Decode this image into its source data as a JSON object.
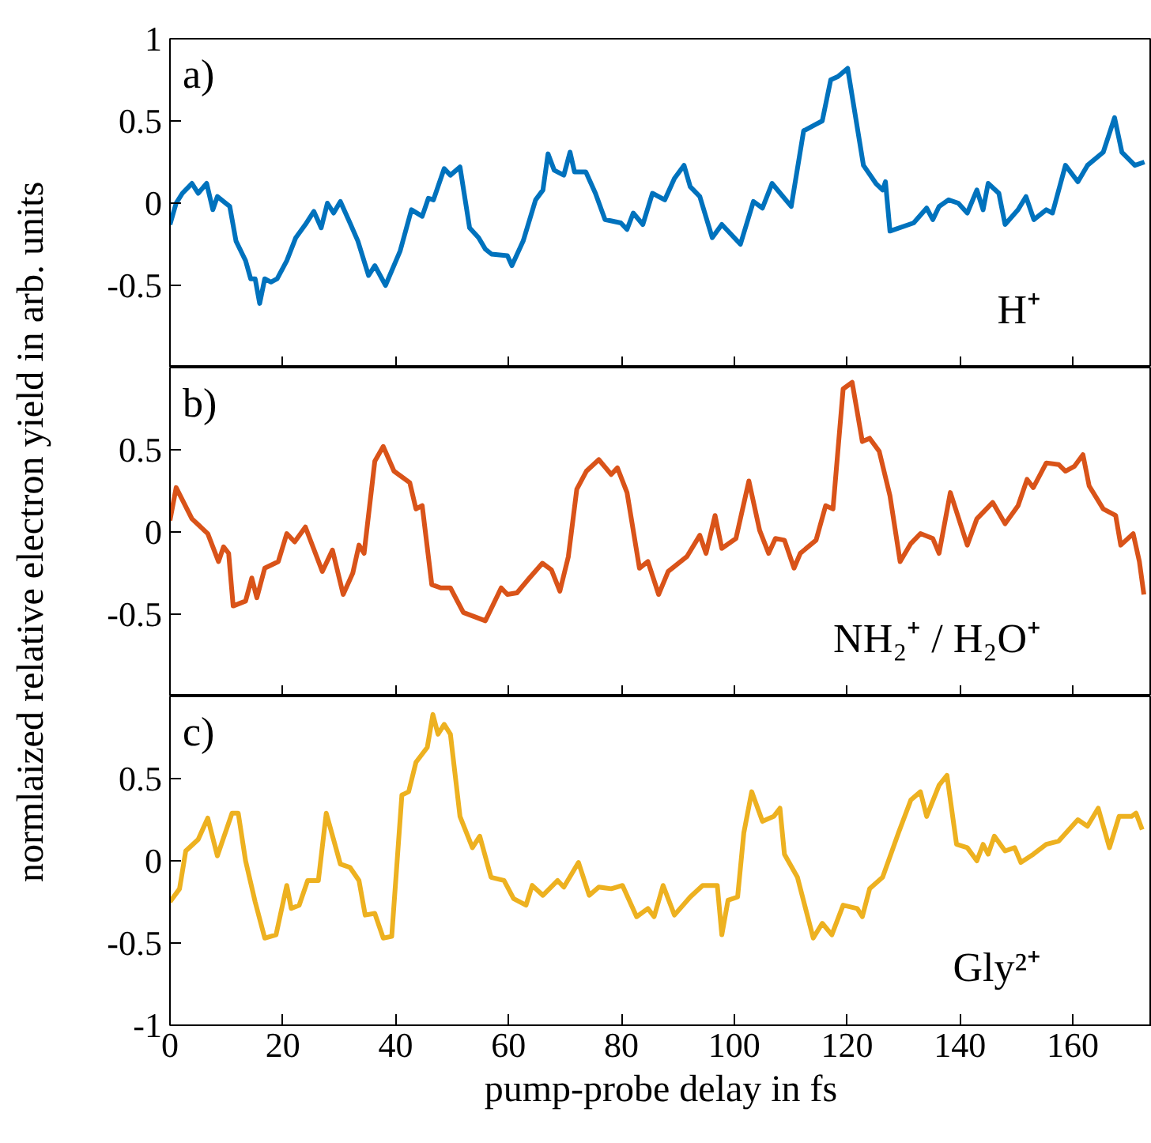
{
  "chart_data": [
    {
      "type": "line",
      "annotations": [
        "a)",
        "H⁺"
      ],
      "xlim": [
        0,
        174
      ],
      "xticks": [
        0,
        20,
        40,
        60,
        80,
        100,
        120,
        140,
        160
      ],
      "ylim": [
        -1,
        1
      ],
      "yticks": [
        -0.5,
        0,
        0.5,
        1
      ],
      "tick_labels": "y",
      "grid": false,
      "series": [
        {
          "color": "#0072bd",
          "x": [
            0,
            1.1,
            2.2,
            3.9,
            5.0,
            6.5,
            7.6,
            8.4,
            10.6,
            11.7,
            13.4,
            14.3,
            15.1,
            15.9,
            16.8,
            17.9,
            19.0,
            20.7,
            22.3,
            24.0,
            25.5,
            26.8,
            27.9,
            29.0,
            30.2,
            31.9,
            33.3,
            35.2,
            36.3,
            38.2,
            40.8,
            42.8,
            44.7,
            45.8,
            46.7,
            48.6,
            49.7,
            51.4,
            53.1,
            54.7,
            55.9,
            57.0,
            59.8,
            60.6,
            62.6,
            64.8,
            66.1,
            67.0,
            68.1,
            69.8,
            70.9,
            71.7,
            73.7,
            75.4,
            77.1,
            79.9,
            81.0,
            82.1,
            83.8,
            85.5,
            87.7,
            89.4,
            91.1,
            92.2,
            93.9,
            96.1,
            97.8,
            101.1,
            103.4,
            105.0,
            106.7,
            110.1,
            112.3,
            114.5,
            115.6,
            117.1,
            118.4,
            120.1,
            122.9,
            125.1,
            126.3,
            126.8,
            127.6,
            131.8,
            134.1,
            135.2,
            136.3,
            138.0,
            139.7,
            141.3,
            143.0,
            144.1,
            145.0,
            146.9,
            148.0,
            150.3,
            151.7,
            153.1,
            155.3,
            156.4,
            158.7,
            160.9,
            162.6,
            165.4,
            167.4,
            168.7,
            171.0,
            172.7
          ],
          "values": [
            -0.13,
            0,
            0.06,
            0.12,
            0.06,
            0.12,
            -0.04,
            0.04,
            -0.02,
            -0.23,
            -0.35,
            -0.46,
            -0.46,
            -0.61,
            -0.46,
            -0.48,
            -0.46,
            -0.35,
            -0.21,
            -0.13,
            -0.05,
            -0.15,
            0,
            -0.06,
            0.01,
            -0.12,
            -0.23,
            -0.44,
            -0.38,
            -0.5,
            -0.29,
            -0.04,
            -0.08,
            0.03,
            0.02,
            0.21,
            0.17,
            0.22,
            -0.15,
            -0.21,
            -0.28,
            -0.31,
            -0.32,
            -0.38,
            -0.23,
            0.02,
            0.08,
            0.3,
            0.2,
            0.17,
            0.31,
            0.19,
            0.19,
            0.06,
            -0.1,
            -0.12,
            -0.16,
            -0.06,
            -0.13,
            0.06,
            0.02,
            0.15,
            0.23,
            0.1,
            0.04,
            -0.21,
            -0.13,
            -0.25,
            0.01,
            -0.03,
            0.12,
            -0.02,
            0.44,
            0.48,
            0.5,
            0.75,
            0.77,
            0.82,
            0.23,
            0.12,
            0.08,
            0.13,
            -0.17,
            -0.12,
            -0.03,
            -0.1,
            -0.02,
            0.02,
            0,
            -0.06,
            0.08,
            -0.04,
            0.12,
            0.06,
            -0.13,
            -0.04,
            0.04,
            -0.1,
            -0.04,
            -0.06,
            0.23,
            0.13,
            0.23,
            0.31,
            0.52,
            0.31,
            0.23,
            0.25
          ]
        }
      ]
    },
    {
      "type": "line",
      "ylabel": "normlaized relative electron yield in arb. units",
      "annotations": [
        "b)",
        "NH₂⁺ / H₂O⁺"
      ],
      "xlim": [
        0,
        174
      ],
      "xticks": [
        0,
        20,
        40,
        60,
        80,
        100,
        120,
        140,
        160
      ],
      "ylim": [
        -1,
        1
      ],
      "yticks": [
        -0.5,
        0,
        0.5
      ],
      "tick_labels": "y",
      "grid": false,
      "series": [
        {
          "color": "#d95319",
          "x": [
            0,
            1.1,
            3.9,
            6.7,
            8.6,
            9.5,
            10.4,
            11.2,
            13.4,
            14.5,
            15.4,
            16.8,
            19.2,
            20.7,
            22.1,
            24.0,
            27.0,
            28.8,
            30.7,
            32.4,
            33.5,
            34.4,
            36.3,
            37.8,
            39.7,
            42.5,
            43.6,
            44.7,
            46.4,
            48.0,
            49.7,
            52.0,
            55.9,
            58.7,
            59.8,
            61.5,
            63.7,
            66.0,
            67.6,
            69.1,
            70.6,
            72.1,
            73.8,
            76.0,
            78.2,
            79.3,
            81.0,
            83.2,
            84.7,
            86.6,
            88.3,
            91.6,
            93.9,
            95.0,
            96.6,
            97.8,
            100.3,
            102.6,
            104.5,
            106.1,
            107.3,
            108.9,
            110.6,
            111.7,
            114.5,
            116.2,
            117.5,
            119.3,
            120.9,
            122.7,
            124.0,
            125.7,
            127.6,
            129.4,
            131.3,
            133.0,
            135.2,
            136.3,
            138.3,
            141.3,
            143.0,
            145.8,
            148.0,
            150.3,
            151.9,
            153.0,
            155.3,
            157.5,
            158.7,
            160.3,
            161.8,
            162.9,
            165.4,
            167.6,
            168.5,
            170.7,
            171.8,
            172.6
          ],
          "values": [
            0.07,
            0.27,
            0.08,
            -0.01,
            -0.18,
            -0.09,
            -0.13,
            -0.45,
            -0.42,
            -0.28,
            -0.4,
            -0.22,
            -0.18,
            -0.01,
            -0.06,
            0.03,
            -0.24,
            -0.11,
            -0.38,
            -0.25,
            -0.08,
            -0.13,
            0.43,
            0.52,
            0.37,
            0.3,
            0.14,
            0.16,
            -0.32,
            -0.34,
            -0.34,
            -0.49,
            -0.54,
            -0.34,
            -0.38,
            -0.37,
            -0.28,
            -0.19,
            -0.23,
            -0.36,
            -0.15,
            0.26,
            0.37,
            0.44,
            0.35,
            0.39,
            0.24,
            -0.22,
            -0.18,
            -0.38,
            -0.24,
            -0.15,
            -0.02,
            -0.13,
            0.1,
            -0.1,
            -0.04,
            0.31,
            0.01,
            -0.13,
            -0.04,
            -0.05,
            -0.22,
            -0.13,
            -0.05,
            0.16,
            0.14,
            0.87,
            0.91,
            0.55,
            0.57,
            0.49,
            0.22,
            -0.18,
            -0.07,
            -0.01,
            -0.04,
            -0.13,
            0.24,
            -0.08,
            0.08,
            0.18,
            0.05,
            0.16,
            0.32,
            0.27,
            0.42,
            0.41,
            0.37,
            0.4,
            0.47,
            0.28,
            0.14,
            0.1,
            -0.08,
            -0.01,
            -0.18,
            -0.38
          ]
        }
      ]
    },
    {
      "type": "line",
      "xlabel": "pump-probe delay in fs",
      "annotations": [
        "c)",
        "Gly²⁺"
      ],
      "xlim": [
        0,
        174
      ],
      "xticks": [
        0,
        20,
        40,
        60,
        80,
        100,
        120,
        140,
        160
      ],
      "ylim": [
        -1,
        1
      ],
      "yticks": [
        -1,
        -0.5,
        0,
        0.5
      ],
      "grid": false,
      "series": [
        {
          "color": "#edb120",
          "x": [
            0,
            1.7,
            2.8,
            5.0,
            6.7,
            8.4,
            11.0,
            12.1,
            13.4,
            15.1,
            16.8,
            18.8,
            20.7,
            21.5,
            22.9,
            24.4,
            26.3,
            27.7,
            30.2,
            31.9,
            33.5,
            34.6,
            36.3,
            37.8,
            39.3,
            41.1,
            42.3,
            43.6,
            45.6,
            46.6,
            47.5,
            48.6,
            49.7,
            51.4,
            53.6,
            54.9,
            56.9,
            59.2,
            60.9,
            63.1,
            64.2,
            66.1,
            68.7,
            69.8,
            72.4,
            74.3,
            76.0,
            78.2,
            80.2,
            82.7,
            84.7,
            85.8,
            87.4,
            89.4,
            92.2,
            94.4,
            97.0,
            97.8,
            98.9,
            100.6,
            101.7,
            103.1,
            105.0,
            107.0,
            108.1,
            108.9,
            111.2,
            114.0,
            115.6,
            117.3,
            119.3,
            121.8,
            122.7,
            124.0,
            126.3,
            129.1,
            131.3,
            133.0,
            134.1,
            136.3,
            137.7,
            139.4,
            141.3,
            143.0,
            144.1,
            145.0,
            146.1,
            148.0,
            149.7,
            150.8,
            153.0,
            155.3,
            157.5,
            160.9,
            162.6,
            164.5,
            166.5,
            168.2,
            170.4,
            171.2,
            172.3
          ],
          "values": [
            -0.25,
            -0.17,
            0.06,
            0.13,
            0.26,
            0.03,
            0.29,
            0.29,
            0,
            -0.25,
            -0.47,
            -0.45,
            -0.15,
            -0.29,
            -0.27,
            -0.12,
            -0.12,
            0.29,
            -0.02,
            -0.04,
            -0.12,
            -0.33,
            -0.32,
            -0.47,
            -0.46,
            0.4,
            0.42,
            0.6,
            0.69,
            0.89,
            0.77,
            0.83,
            0.77,
            0.27,
            0.08,
            0.15,
            -0.1,
            -0.12,
            -0.23,
            -0.27,
            -0.15,
            -0.21,
            -0.12,
            -0.16,
            -0.01,
            -0.21,
            -0.16,
            -0.17,
            -0.15,
            -0.34,
            -0.29,
            -0.34,
            -0.15,
            -0.33,
            -0.22,
            -0.15,
            -0.15,
            -0.45,
            -0.24,
            -0.22,
            0.17,
            0.42,
            0.24,
            0.27,
            0.32,
            0.04,
            -0.1,
            -0.47,
            -0.38,
            -0.45,
            -0.27,
            -0.29,
            -0.34,
            -0.17,
            -0.1,
            0.17,
            0.37,
            0.42,
            0.27,
            0.46,
            0.52,
            0.1,
            0.08,
            0,
            0.1,
            0.04,
            0.15,
            0.06,
            0.08,
            -0.01,
            0.04,
            0.1,
            0.12,
            0.25,
            0.21,
            0.32,
            0.08,
            0.27,
            0.27,
            0.29,
            0.19
          ]
        }
      ]
    }
  ]
}
